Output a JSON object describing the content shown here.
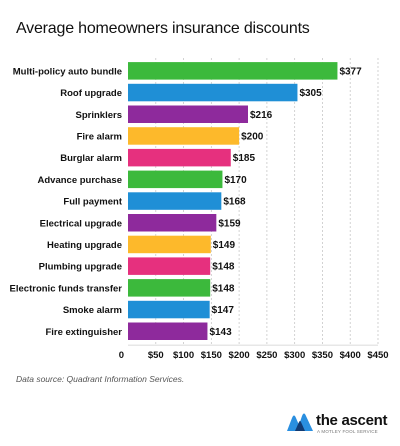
{
  "chart_data": {
    "type": "bar",
    "orientation": "horizontal",
    "title": "Average homeowners insurance discounts",
    "categories": [
      "Multi-policy auto bundle",
      "Roof upgrade",
      "Sprinklers",
      "Fire alarm",
      "Burglar alarm",
      "Advance purchase",
      "Full payment",
      "Electrical upgrade",
      "Heating upgrade",
      "Plumbing upgrade",
      "Electronic funds transfer",
      "Smoke alarm",
      "Fire extinguisher"
    ],
    "values": [
      377,
      305,
      216,
      200,
      185,
      170,
      168,
      159,
      149,
      148,
      148,
      147,
      143
    ],
    "value_labels": [
      "$377",
      "$305",
      "$216",
      "$200",
      "$185",
      "$170",
      "$168",
      "$159",
      "$149",
      "$148",
      "$148",
      "$147",
      "$143"
    ],
    "bar_colors": [
      "#3cb93c",
      "#1f8fd6",
      "#8e2a9c",
      "#fdb92b",
      "#e6307e",
      "#3cb93c",
      "#1f8fd6",
      "#8e2a9c",
      "#fdb92b",
      "#e6307e",
      "#3cb93c",
      "#1f8fd6",
      "#8e2a9c"
    ],
    "xlim": [
      0,
      450
    ],
    "x_ticks": [
      0,
      50,
      100,
      150,
      200,
      250,
      300,
      350,
      400,
      450
    ],
    "x_tick_labels": [
      "0",
      "$50",
      "$100",
      "$150",
      "$200",
      "$250",
      "$300",
      "$350",
      "$400",
      "$450"
    ],
    "grid": "vertical dashed",
    "legend": "none"
  },
  "source": "Data source: Quadrant Information Services.",
  "brand": {
    "name": "the ascent",
    "tagline": "A MOTLEY FOOL SERVICE"
  }
}
